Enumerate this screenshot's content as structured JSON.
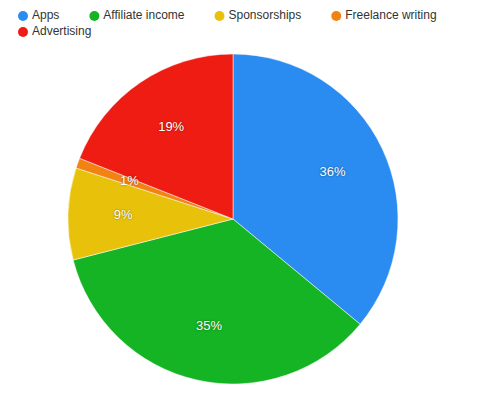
{
  "chart_data": {
    "type": "pie",
    "categories": [
      "Apps",
      "Affiliate income",
      "Sponsorships",
      "Freelance writing",
      "Advertising"
    ],
    "values": [
      36,
      35,
      9,
      1,
      19
    ],
    "value_labels": [
      "36%",
      "35%",
      "9%",
      "1%",
      "19%"
    ],
    "colors": [
      "#2a8cf0",
      "#14b424",
      "#e8c20a",
      "#f28212",
      "#ee1c12"
    ],
    "data_labels": true,
    "legend": "top-left"
  }
}
